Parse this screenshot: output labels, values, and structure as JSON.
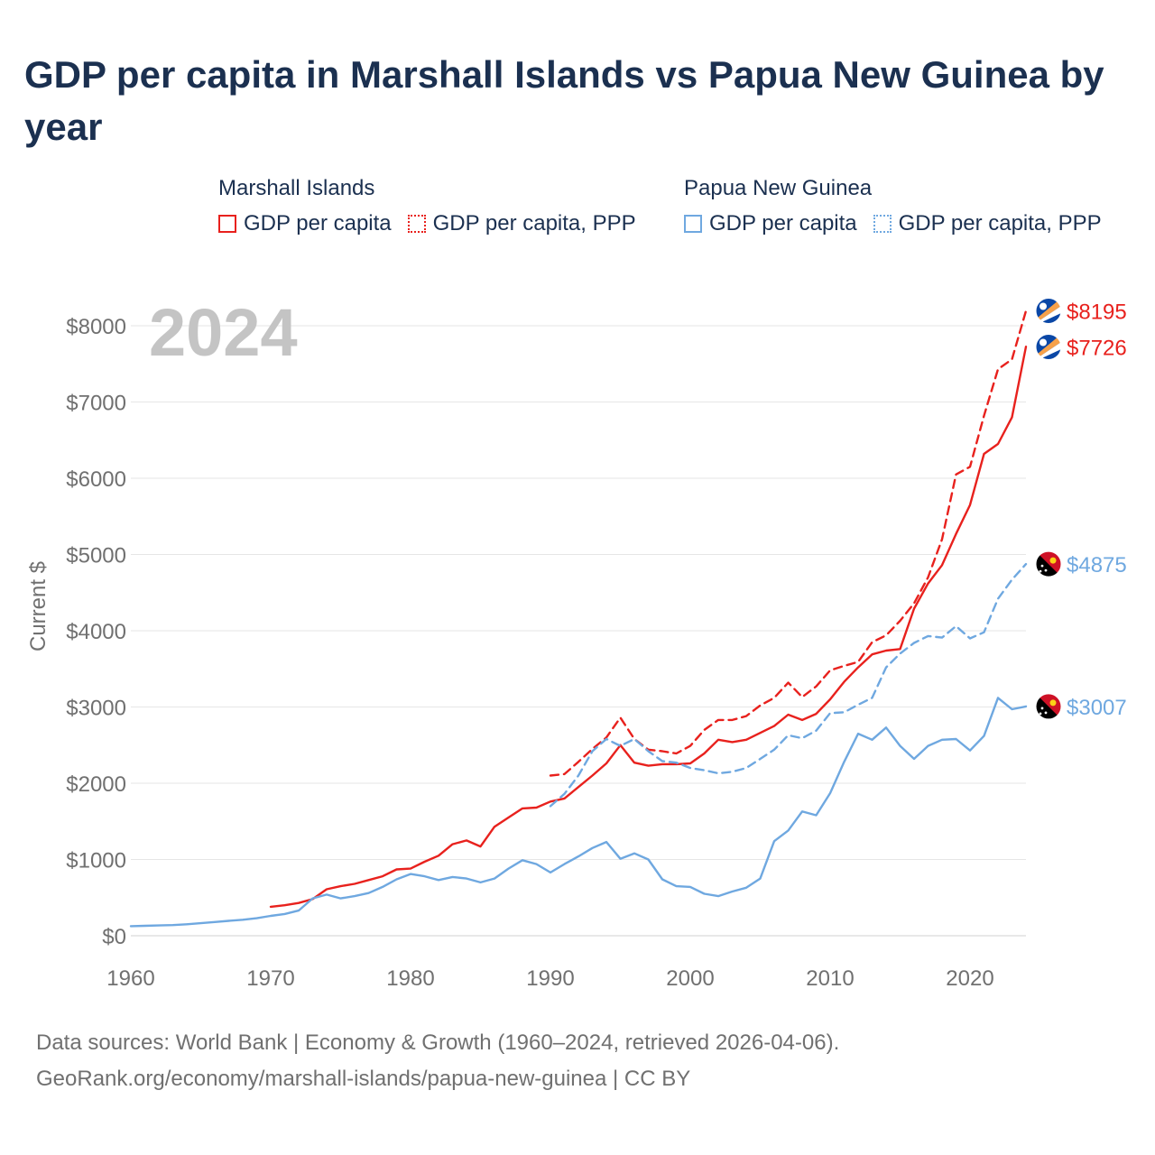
{
  "title": "GDP per capita in Marshall Islands vs Papua New Guinea by year",
  "legend": {
    "groups": [
      {
        "name": "Marshall Islands",
        "color": "#e8211d",
        "entries": [
          {
            "label": "GDP per capita",
            "style": "solid"
          },
          {
            "label": "GDP per capita, PPP",
            "style": "dotted"
          }
        ]
      },
      {
        "name": "Papua New Guinea",
        "color": "#6fa8e0",
        "entries": [
          {
            "label": "GDP per capita",
            "style": "solid"
          },
          {
            "label": "GDP per capita, PPP",
            "style": "dotted"
          }
        ]
      }
    ]
  },
  "footer": {
    "line1": "Data sources: World Bank | Economy & Growth (1960–2024, retrieved 2026-04-06).",
    "line2": "GeoRank.org/economy/marshall-islands/papua-new-guinea | CC BY"
  },
  "chart_data": {
    "type": "line",
    "title": "GDP per capita in Marshall Islands vs Papua New Guinea by year",
    "year_label": "2024",
    "xlabel": "",
    "ylabel": "Current $",
    "xlim": [
      1960,
      2024
    ],
    "ylim": [
      0,
      8500
    ],
    "x_ticks": [
      1960,
      1970,
      1980,
      1990,
      2000,
      2010,
      2020
    ],
    "y_ticks": [
      0,
      1000,
      2000,
      3000,
      4000,
      5000,
      6000,
      7000,
      8000
    ],
    "y_tick_labels": [
      "$0",
      "$1000",
      "$2000",
      "$3000",
      "$4000",
      "$5000",
      "$6000",
      "$7000",
      "$8000"
    ],
    "grid": true,
    "series": [
      {
        "name": "Marshall Islands GDP per capita",
        "country": "Marshall Islands",
        "measure": "GDP per capita",
        "color": "#e8211d",
        "dash": "solid",
        "end_label": "$7726",
        "x": [
          1970,
          1971,
          1972,
          1973,
          1974,
          1975,
          1976,
          1977,
          1978,
          1979,
          1980,
          1981,
          1982,
          1983,
          1984,
          1985,
          1986,
          1987,
          1988,
          1989,
          1990,
          1991,
          1992,
          1993,
          1994,
          1995,
          1996,
          1997,
          1998,
          1999,
          2000,
          2001,
          2002,
          2003,
          2004,
          2005,
          2006,
          2007,
          2008,
          2009,
          2010,
          2011,
          2012,
          2013,
          2014,
          2015,
          2016,
          2017,
          2018,
          2019,
          2020,
          2021,
          2022,
          2023,
          2024
        ],
        "y": [
          380,
          400,
          430,
          480,
          610,
          650,
          680,
          730,
          780,
          870,
          880,
          970,
          1050,
          1200,
          1250,
          1170,
          1430,
          1550,
          1670,
          1680,
          1760,
          1800,
          1950,
          2100,
          2260,
          2500,
          2270,
          2230,
          2250,
          2250,
          2260,
          2390,
          2570,
          2540,
          2570,
          2660,
          2750,
          2900,
          2830,
          2910,
          3100,
          3330,
          3520,
          3690,
          3740,
          3760,
          4290,
          4620,
          4860,
          5270,
          5650,
          6320,
          6450,
          6800,
          7726
        ]
      },
      {
        "name": "Marshall Islands GDP per capita, PPP",
        "country": "Marshall Islands",
        "measure": "GDP per capita, PPP",
        "color": "#e8211d",
        "dash": "dotted",
        "end_label": "$8195",
        "x": [
          1990,
          1991,
          1992,
          1993,
          1994,
          1995,
          1996,
          1997,
          1998,
          1999,
          2000,
          2001,
          2002,
          2003,
          2004,
          2005,
          2006,
          2007,
          2008,
          2009,
          2010,
          2011,
          2012,
          2013,
          2014,
          2015,
          2016,
          2017,
          2018,
          2019,
          2020,
          2021,
          2022,
          2023,
          2024
        ],
        "y": [
          2100,
          2120,
          2280,
          2450,
          2600,
          2860,
          2580,
          2440,
          2420,
          2390,
          2490,
          2700,
          2830,
          2830,
          2880,
          3020,
          3120,
          3320,
          3130,
          3270,
          3480,
          3540,
          3590,
          3850,
          3940,
          4130,
          4360,
          4700,
          5200,
          6050,
          6150,
          6820,
          7430,
          7560,
          8195
        ]
      },
      {
        "name": "Papua New Guinea GDP per capita",
        "country": "Papua New Guinea",
        "measure": "GDP per capita",
        "color": "#6fa8e0",
        "dash": "solid",
        "end_label": "$3007",
        "x": [
          1960,
          1961,
          1962,
          1963,
          1964,
          1965,
          1966,
          1967,
          1968,
          1969,
          1970,
          1971,
          1972,
          1973,
          1974,
          1975,
          1976,
          1977,
          1978,
          1979,
          1980,
          1981,
          1982,
          1983,
          1984,
          1985,
          1986,
          1987,
          1988,
          1989,
          1990,
          1991,
          1992,
          1993,
          1994,
          1995,
          1996,
          1997,
          1998,
          1999,
          2000,
          2001,
          2002,
          2003,
          2004,
          2005,
          2006,
          2007,
          2008,
          2009,
          2010,
          2011,
          2012,
          2013,
          2014,
          2015,
          2016,
          2017,
          2018,
          2019,
          2020,
          2021,
          2022,
          2023,
          2024
        ],
        "y": [
          125,
          130,
          135,
          140,
          150,
          165,
          180,
          195,
          210,
          230,
          260,
          285,
          330,
          490,
          540,
          490,
          520,
          560,
          640,
          740,
          810,
          780,
          730,
          770,
          750,
          700,
          750,
          880,
          990,
          940,
          830,
          940,
          1040,
          1150,
          1230,
          1010,
          1080,
          1000,
          740,
          650,
          640,
          550,
          520,
          580,
          630,
          750,
          1240,
          1380,
          1630,
          1580,
          1870,
          2280,
          2650,
          2570,
          2730,
          2490,
          2320,
          2490,
          2570,
          2580,
          2430,
          2620,
          3120,
          2970,
          3007
        ]
      },
      {
        "name": "Papua New Guinea GDP per capita, PPP",
        "country": "Papua New Guinea",
        "measure": "GDP per capita, PPP",
        "color": "#6fa8e0",
        "dash": "dotted",
        "end_label": "$4875",
        "x": [
          1990,
          1991,
          1992,
          1993,
          1994,
          1995,
          1996,
          1997,
          1998,
          1999,
          2000,
          2001,
          2002,
          2003,
          2004,
          2005,
          2006,
          2007,
          2008,
          2009,
          2010,
          2011,
          2012,
          2013,
          2014,
          2015,
          2016,
          2017,
          2018,
          2019,
          2020,
          2021,
          2022,
          2023,
          2024
        ],
        "y": [
          1700,
          1860,
          2100,
          2420,
          2580,
          2490,
          2580,
          2420,
          2290,
          2270,
          2200,
          2170,
          2130,
          2150,
          2200,
          2320,
          2440,
          2630,
          2590,
          2690,
          2920,
          2930,
          3030,
          3120,
          3520,
          3700,
          3840,
          3930,
          3910,
          4060,
          3900,
          3980,
          4420,
          4670,
          4875
        ]
      }
    ]
  }
}
